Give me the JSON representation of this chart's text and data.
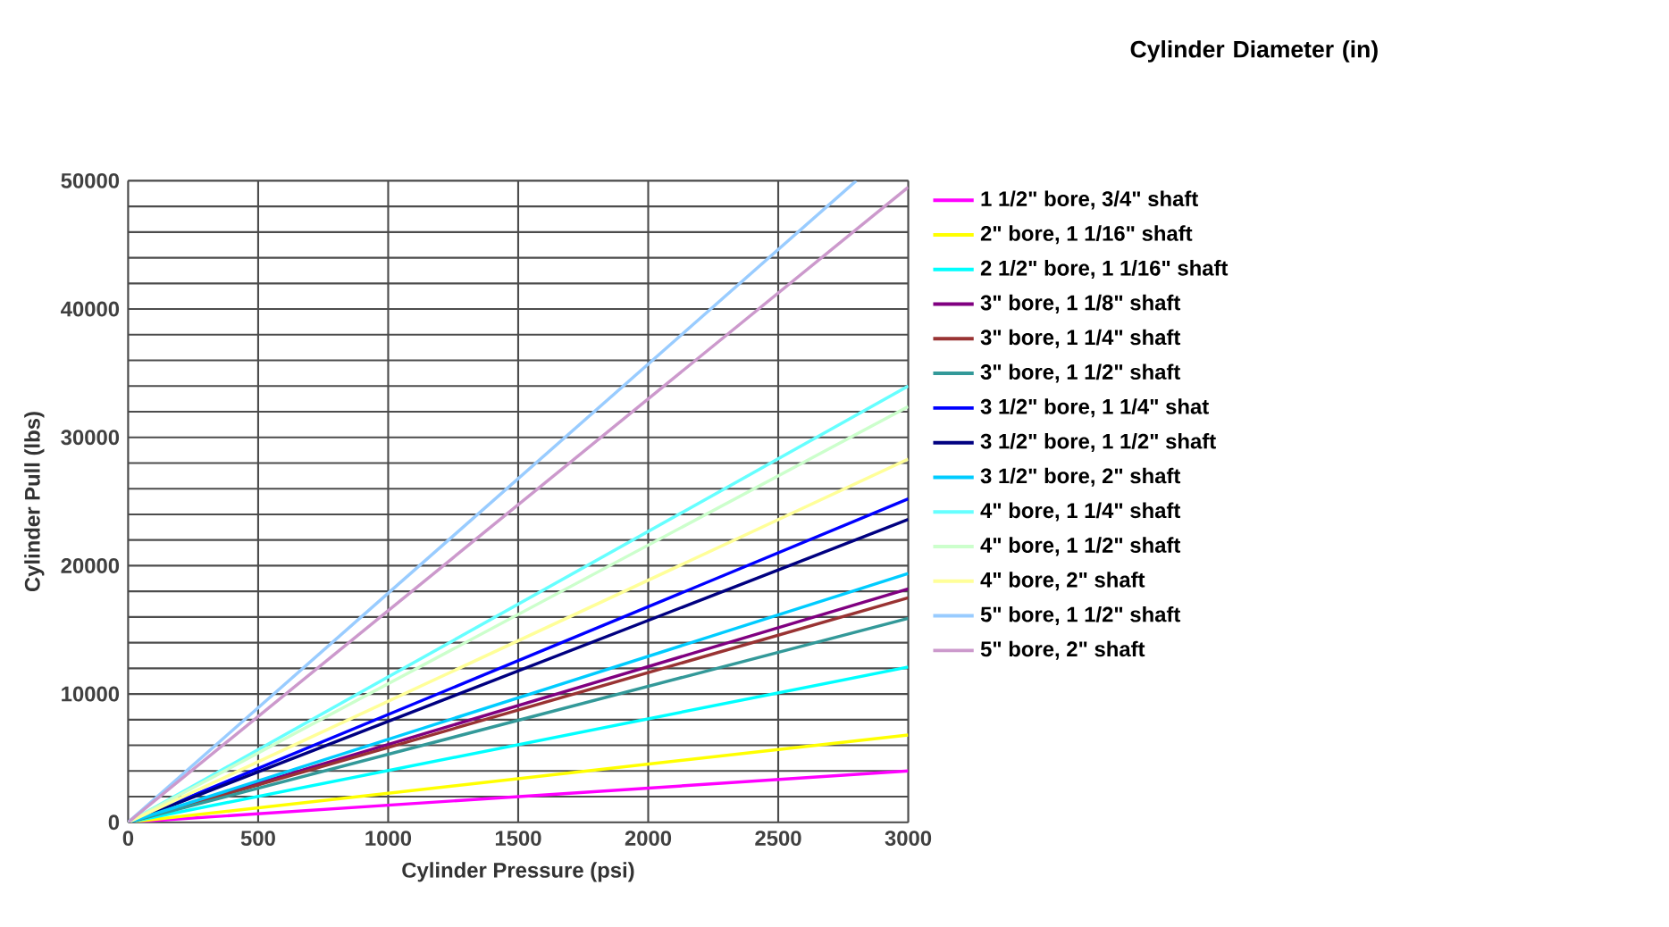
{
  "chart_data": {
    "type": "line",
    "xlabel": "Cylinder Pressure (psi)",
    "ylabel": "Cylinder Pull (lbs)",
    "legend_title": "Cylinder Diameter (in)",
    "legend": "right",
    "grid": true,
    "marker": "none",
    "line_style": "solid",
    "xlim": [
      0,
      3000
    ],
    "xticks": [
      0,
      500,
      1000,
      1500,
      2000,
      2500,
      3000
    ],
    "ylim": [
      0,
      50000
    ],
    "yticks": [
      0,
      {
        "value": 2000,
        "label": null
      },
      {
        "value": 4000,
        "label": null
      },
      {
        "value": 6000,
        "label": null
      },
      {
        "value": 8000,
        "label": null
      },
      10000,
      {
        "value": 12000,
        "label": null
      },
      {
        "value": 14000,
        "label": null
      },
      {
        "value": 16000,
        "label": null
      },
      {
        "value": 18000,
        "label": null
      },
      20000,
      {
        "value": 22000,
        "label": null
      },
      {
        "value": 24000,
        "label": null
      },
      {
        "value": 26000,
        "label": null
      },
      {
        "value": 28000,
        "label": null
      },
      30000,
      {
        "value": 32000,
        "label": null
      },
      {
        "value": 34000,
        "label": null
      },
      {
        "value": 36000,
        "label": null
      },
      {
        "value": 38000,
        "label": null
      },
      40000,
      {
        "value": 42000,
        "label": null
      },
      {
        "value": 44000,
        "label": null
      },
      {
        "value": 46000,
        "label": null
      },
      {
        "value": 48000,
        "label": null
      },
      50000
    ],
    "series": [
      {
        "name": "1 1/2\" bore, 3/4\" shaft",
        "color": "#ff00ff",
        "x": [
          0,
          3000
        ],
        "values": [
          0,
          4000
        ]
      },
      {
        "name": "2\" bore, 1 1/16\" shaft",
        "color": "#ffff00",
        "x": [
          0,
          3000
        ],
        "values": [
          0,
          6800
        ]
      },
      {
        "name": "2 1/2\" bore, 1 1/16\" shaft",
        "color": "#00ffff",
        "x": [
          0,
          3000
        ],
        "values": [
          0,
          12100
        ]
      },
      {
        "name": "3\" bore, 1 1/8\" shaft",
        "color": "#800080",
        "x": [
          0,
          3000
        ],
        "values": [
          0,
          18200
        ]
      },
      {
        "name": "3\" bore, 1 1/4\" shaft",
        "color": "#993333",
        "x": [
          0,
          3000
        ],
        "values": [
          0,
          17500
        ]
      },
      {
        "name": "3\" bore, 1 1/2\" shaft",
        "color": "#339999",
        "x": [
          0,
          3000
        ],
        "values": [
          0,
          15900
        ]
      },
      {
        "name": "3 1/2\" bore, 1 1/4\" shat",
        "color": "#0000ff",
        "x": [
          0,
          3000
        ],
        "values": [
          0,
          25200
        ]
      },
      {
        "name": "3 1/2\" bore, 1 1/2\" shaft",
        "color": "#000080",
        "x": [
          0,
          3000
        ],
        "values": [
          0,
          23600
        ]
      },
      {
        "name": "3 1/2\" bore, 2\" shaft",
        "color": "#00ccff",
        "x": [
          0,
          3000
        ],
        "values": [
          0,
          19400
        ]
      },
      {
        "name": "4\" bore, 1 1/4\" shaft",
        "color": "#66ffff",
        "x": [
          0,
          3000
        ],
        "values": [
          0,
          34000
        ]
      },
      {
        "name": "4\" bore, 1 1/2\" shaft",
        "color": "#ccffcc",
        "x": [
          0,
          3000
        ],
        "values": [
          0,
          32400
        ]
      },
      {
        "name": "4\" bore, 2\" shaft",
        "color": "#ffff99",
        "x": [
          0,
          3000
        ],
        "values": [
          0,
          28300
        ]
      },
      {
        "name": "5\" bore, 1 1/2\" shaft",
        "color": "#99ccff",
        "x": [
          0,
          2800
        ],
        "values": [
          0,
          50000
        ]
      },
      {
        "name": "5\" bore, 2\" shaft",
        "color": "#cc99cc",
        "x": [
          0,
          3000
        ],
        "values": [
          0,
          49500
        ]
      }
    ]
  }
}
